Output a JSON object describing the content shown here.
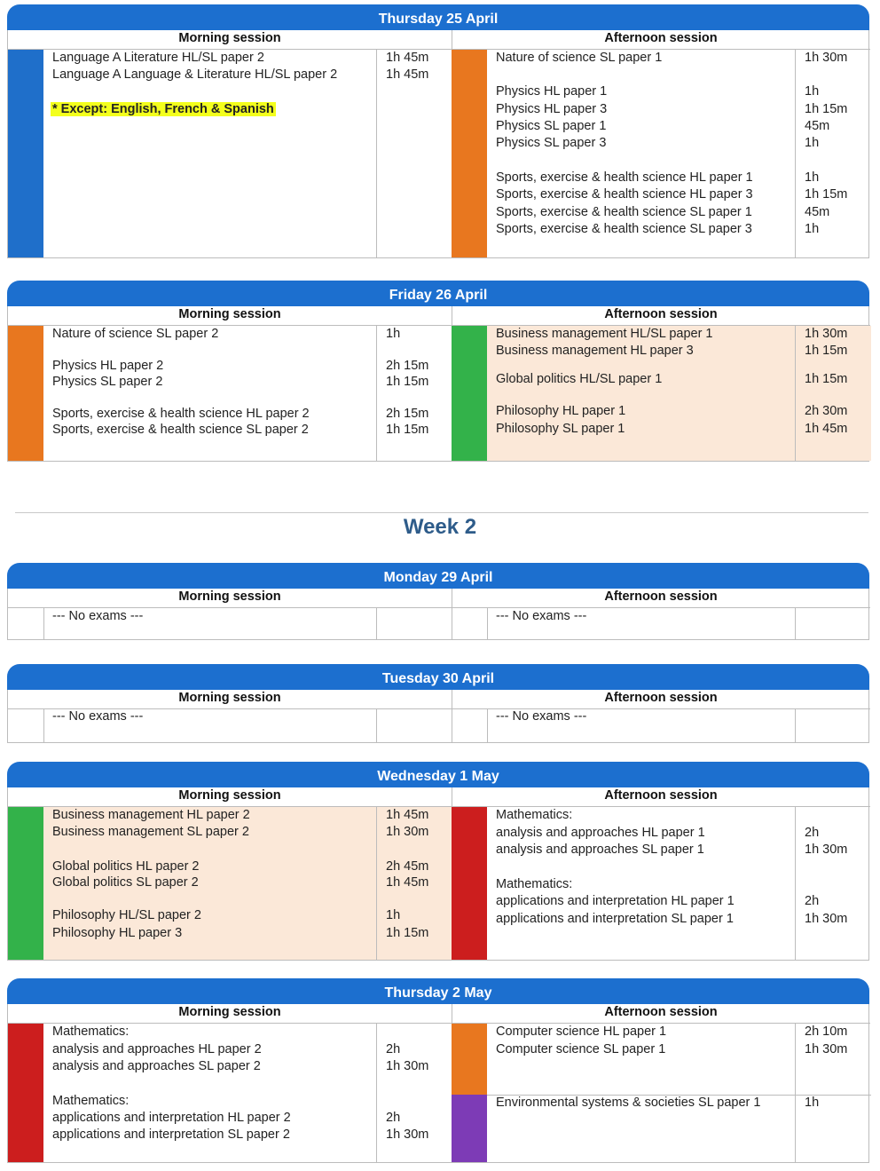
{
  "session_labels": {
    "morning": "Morning session",
    "afternoon": "Afternoon session"
  },
  "week_title": "Week 2",
  "colors": {
    "blue": "#1f6fca",
    "orange": "#e8771f",
    "green": "#33b24a",
    "red": "#cc1e1e",
    "purple": "#7d3bb6",
    "peach": "#fbe8d8",
    "header": "#1c6fcf",
    "highlight": "#f3ff1d"
  },
  "days": [
    {
      "title": "Thursday 25 April",
      "am": {
        "blocks": [
          {
            "color": "blue",
            "rows": [
              {
                "subject": "Language A Literature HL/SL paper 2",
                "duration": "1h 45m"
              },
              {
                "subject": "Language A Language & Literature HL/SL paper 2",
                "duration": "1h 45m"
              }
            ]
          }
        ],
        "note": "* Except: English, French & Spanish"
      },
      "pm": {
        "blocks": [
          {
            "color": "orange",
            "rows": [
              {
                "subject": "Nature of science SL paper 1",
                "duration": "1h 30m"
              },
              {
                "subject": "Physics HL paper 1",
                "duration": "1h"
              },
              {
                "subject": "Physics HL paper 3",
                "duration": "1h 15m"
              },
              {
                "subject": "Physics SL paper 1",
                "duration": "45m"
              },
              {
                "subject": "Physics SL paper 3",
                "duration": "1h"
              },
              {
                "subject": "Sports, exercise & health science HL paper 1",
                "duration": "1h"
              },
              {
                "subject": "Sports, exercise & health science HL paper 3",
                "duration": "1h 15m"
              },
              {
                "subject": "Sports, exercise & health science SL paper 1",
                "duration": "45m"
              },
              {
                "subject": "Sports, exercise & health science SL paper 3",
                "duration": "1h"
              }
            ]
          }
        ]
      }
    },
    {
      "title": "Friday 26 April",
      "am": {
        "blocks": [
          {
            "color": "orange",
            "rows": [
              {
                "subject": "Nature of science SL paper 2",
                "duration": "1h"
              },
              {
                "subject": "Physics HL paper 2",
                "duration": "2h 15m"
              },
              {
                "subject": "Physics SL paper 2",
                "duration": "1h 15m"
              },
              {
                "subject": "Sports, exercise & health science HL paper 2",
                "duration": "2h 15m"
              },
              {
                "subject": "Sports, exercise & health science SL paper 2",
                "duration": "1h 15m"
              }
            ]
          }
        ]
      },
      "pm": {
        "blocks": [
          {
            "color": "green",
            "rows": [
              {
                "subject": "Business management HL/SL paper 1",
                "duration": "1h 30m"
              },
              {
                "subject": "Business management HL paper 3",
                "duration": "1h 15m"
              },
              {
                "subject": "Global politics HL/SL paper 1",
                "duration": "1h 15m"
              },
              {
                "subject": "Philosophy HL paper 1",
                "duration": "2h 30m"
              },
              {
                "subject": "Philosophy SL paper 1",
                "duration": "1h 45m"
              }
            ]
          }
        ]
      }
    },
    {
      "title": "Monday 29 April",
      "am": {
        "no_exams": "--- No exams ---"
      },
      "pm": {
        "no_exams": "--- No exams ---"
      }
    },
    {
      "title": "Tuesday 30 April",
      "am": {
        "no_exams": "--- No exams ---"
      },
      "pm": {
        "no_exams": "--- No exams ---"
      }
    },
    {
      "title": "Wednesday 1 May",
      "am": {
        "blocks": [
          {
            "color": "green",
            "rows": [
              {
                "subject": "Business management HL paper 2",
                "duration": "1h 45m"
              },
              {
                "subject": "Business management SL paper 2",
                "duration": "1h 30m"
              },
              {
                "subject": "Global politics HL paper 2",
                "duration": "2h 45m"
              },
              {
                "subject": "Global politics SL paper 2",
                "duration": "1h 45m"
              },
              {
                "subject": "Philosophy HL/SL paper 2",
                "duration": "1h"
              },
              {
                "subject": "Philosophy HL paper 3",
                "duration": "1h 15m"
              }
            ]
          }
        ]
      },
      "pm": {
        "blocks": [
          {
            "color": "red",
            "rows": [
              {
                "subject": "Mathematics:",
                "duration": ""
              },
              {
                "subject": "analysis and approaches HL paper 1",
                "duration": "2h"
              },
              {
                "subject": "analysis and approaches SL paper 1",
                "duration": "1h 30m"
              },
              {
                "subject": "Mathematics:",
                "duration": ""
              },
              {
                "subject": "applications and interpretation HL paper 1",
                "duration": "2h"
              },
              {
                "subject": "applications and interpretation SL paper 1",
                "duration": "1h 30m"
              }
            ]
          }
        ]
      }
    },
    {
      "title": "Thursday 2 May",
      "am": {
        "blocks": [
          {
            "color": "red",
            "rows": [
              {
                "subject": "Mathematics:",
                "duration": ""
              },
              {
                "subject": "analysis and approaches HL paper 2",
                "duration": "2h"
              },
              {
                "subject": "analysis and approaches SL paper 2",
                "duration": "1h 30m"
              },
              {
                "subject": "Mathematics:",
                "duration": ""
              },
              {
                "subject": "applications and interpretation HL paper 2",
                "duration": "2h"
              },
              {
                "subject": "applications and interpretation SL paper 2",
                "duration": "1h 30m"
              }
            ]
          }
        ]
      },
      "pm": {
        "blocks": [
          {
            "color": "orange",
            "rows": [
              {
                "subject": "Computer science HL paper 1",
                "duration": "2h 10m"
              },
              {
                "subject": "Computer science SL paper 1",
                "duration": "1h 30m"
              }
            ]
          },
          {
            "color": "purple",
            "rows": [
              {
                "subject": "Environmental systems & societies SL paper 1",
                "duration": "1h"
              }
            ]
          }
        ]
      }
    }
  ]
}
